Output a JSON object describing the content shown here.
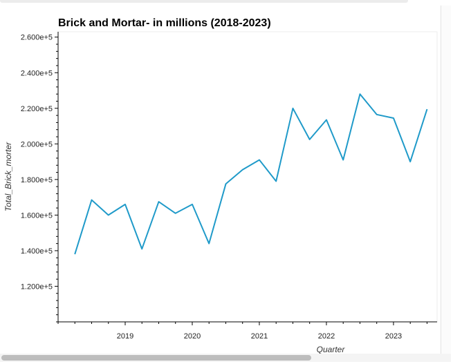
{
  "chart_data": {
    "type": "line",
    "title": "Brick and Mortar- in millions (2018-2023)",
    "xlabel": "Quarter",
    "ylabel": "Total_Brick_morter",
    "x_tick_labels": [
      "2019",
      "2020",
      "2021",
      "2022",
      "2023"
    ],
    "y_tick_labels": [
      "1.200e+5",
      "1.400e+5",
      "1.600e+5",
      "1.800e+5",
      "2.000e+5",
      "2.200e+5",
      "2.400e+5",
      "2.600e+5"
    ],
    "y_ticks": [
      120000,
      140000,
      160000,
      180000,
      200000,
      220000,
      240000,
      260000
    ],
    "x_ticks": [
      2019,
      2020,
      2021,
      2022,
      2023
    ],
    "xlim": [
      2018.0,
      2023.65
    ],
    "ylim": [
      100000,
      263000
    ],
    "grid": false,
    "series": [
      {
        "color": "#1f9ac9",
        "x": [
          2018.25,
          2018.5,
          2018.75,
          2019.0,
          2019.25,
          2019.5,
          2019.75,
          2020.0,
          2020.25,
          2020.5,
          2020.75,
          2021.0,
          2021.25,
          2021.5,
          2021.75,
          2022.0,
          2022.25,
          2022.5,
          2022.75,
          2023.0,
          2023.25,
          2023.5
        ],
        "values": [
          138000,
          168500,
          160000,
          166000,
          141000,
          167500,
          161000,
          166000,
          144000,
          177500,
          185500,
          191000,
          179000,
          220000,
          202500,
          213500,
          191000,
          228000,
          216500,
          214500,
          190000,
          219500
        ]
      }
    ]
  }
}
